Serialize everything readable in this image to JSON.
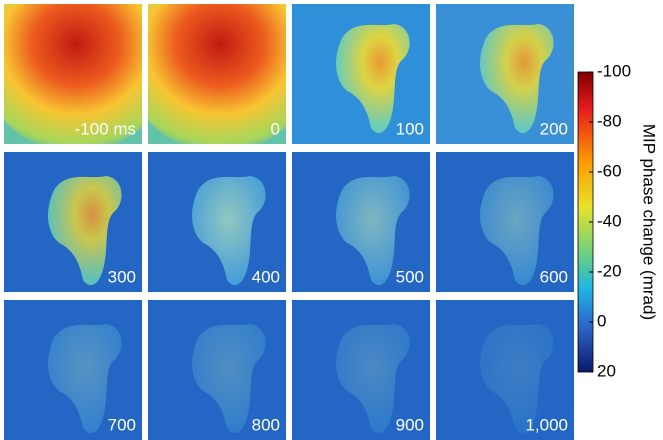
{
  "panels": [
    "-100 ms",
    "0",
    "100",
    "200",
    "300",
    "400",
    "500",
    "600",
    "700",
    "800",
    "900",
    "1,000"
  ],
  "colorbar": {
    "label": "MIP phase change (mrad)",
    "lim": [
      -100,
      20
    ],
    "ticks": [
      -100,
      -80,
      -60,
      -40,
      -20,
      0,
      20
    ]
  }
}
